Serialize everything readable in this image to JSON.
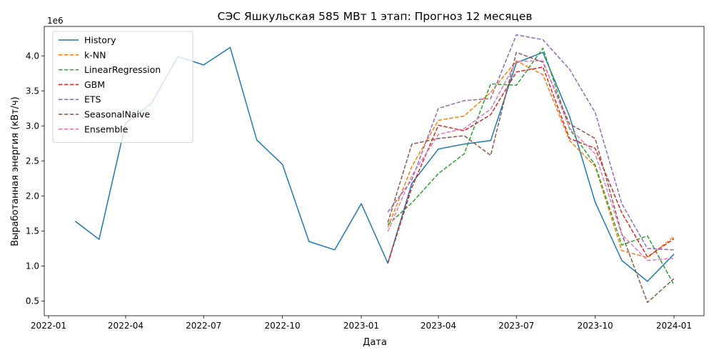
{
  "chart_data": {
    "type": "line",
    "title": "СЭС Яшкульская 585 МВт 1 этап: Прогноз 12 месяцев",
    "xlabel": "Дата",
    "ylabel": "Выработанная энергия (кВт/ч)",
    "y_offset_label": "1e6",
    "y_scale": 1000000,
    "xlim": [
      "2021-12-27",
      "2024-02-05"
    ],
    "ylim": [
      0.29,
      4.42
    ],
    "grid": false,
    "legend_position": "upper-left",
    "x_ticks": [
      {
        "date": "2022-01-01",
        "label": "2022-01"
      },
      {
        "date": "2022-04-01",
        "label": "2022-04"
      },
      {
        "date": "2022-07-01",
        "label": "2022-07"
      },
      {
        "date": "2022-10-01",
        "label": "2022-10"
      },
      {
        "date": "2023-01-01",
        "label": "2023-01"
      },
      {
        "date": "2023-04-01",
        "label": "2023-04"
      },
      {
        "date": "2023-07-01",
        "label": "2023-07"
      },
      {
        "date": "2023-10-01",
        "label": "2023-10"
      },
      {
        "date": "2024-01-01",
        "label": "2024-01"
      }
    ],
    "y_ticks": [
      {
        "value": 0.5,
        "label": "0.5"
      },
      {
        "value": 1.0,
        "label": "1.0"
      },
      {
        "value": 1.5,
        "label": "1.5"
      },
      {
        "value": 2.0,
        "label": "2.0"
      },
      {
        "value": 2.5,
        "label": "2.5"
      },
      {
        "value": 3.0,
        "label": "3.0"
      },
      {
        "value": 3.5,
        "label": "3.5"
      },
      {
        "value": 4.0,
        "label": "4.0"
      }
    ],
    "series": [
      {
        "name": "History",
        "color": "#1f77b4",
        "dash": "solid",
        "x": [
          "2022-02-01",
          "2022-03-01",
          "2022-04-01",
          "2022-05-01",
          "2022-06-01",
          "2022-07-01",
          "2022-08-01",
          "2022-09-01",
          "2022-10-01",
          "2022-11-01",
          "2022-12-01",
          "2023-01-01",
          "2023-02-01",
          "2023-03-01",
          "2023-04-01",
          "2023-05-01",
          "2023-06-01",
          "2023-07-01",
          "2023-08-01",
          "2023-09-01",
          "2023-10-01",
          "2023-11-01",
          "2023-12-01",
          "2024-01-01"
        ],
        "y": [
          1.64,
          1.38,
          3.04,
          3.32,
          3.99,
          3.87,
          4.12,
          2.8,
          2.45,
          1.35,
          1.23,
          1.89,
          1.04,
          2.18,
          2.67,
          2.74,
          2.79,
          3.9,
          4.05,
          3.14,
          1.91,
          1.08,
          0.78,
          1.17
        ]
      },
      {
        "name": "k-NN",
        "color": "#ff7f0e",
        "dash": "dashed",
        "x": [
          "2023-02-01",
          "2023-03-01",
          "2023-04-01",
          "2023-05-01",
          "2023-06-01",
          "2023-07-01",
          "2023-08-01",
          "2023-09-01",
          "2023-10-01",
          "2023-11-01",
          "2023-12-01",
          "2024-01-01"
        ],
        "y": [
          1.55,
          2.42,
          3.08,
          3.14,
          3.48,
          3.93,
          3.73,
          2.79,
          2.42,
          1.22,
          1.12,
          1.42
        ]
      },
      {
        "name": "LinearRegression",
        "color": "#2ca02c",
        "dash": "dashed",
        "x": [
          "2023-02-01",
          "2023-03-01",
          "2023-04-01",
          "2023-05-01",
          "2023-06-01",
          "2023-07-01",
          "2023-08-01",
          "2023-09-01",
          "2023-10-01",
          "2023-11-01",
          "2023-12-01",
          "2024-01-01"
        ],
        "y": [
          1.59,
          1.9,
          2.32,
          2.6,
          3.6,
          3.58,
          4.11,
          2.96,
          2.44,
          1.3,
          1.43,
          0.73
        ]
      },
      {
        "name": "GBM",
        "color": "#d62728",
        "dash": "dashed",
        "x": [
          "2023-02-01",
          "2023-03-01",
          "2023-04-01",
          "2023-05-01",
          "2023-06-01",
          "2023-07-01",
          "2023-08-01",
          "2023-09-01",
          "2023-10-01",
          "2023-11-01",
          "2023-12-01",
          "2024-01-01"
        ],
        "y": [
          1.04,
          2.12,
          3.01,
          2.93,
          3.16,
          3.77,
          3.84,
          2.82,
          2.68,
          1.76,
          1.13,
          1.39
        ]
      },
      {
        "name": "ETS",
        "color": "#9467bd",
        "dash": "dashed",
        "x": [
          "2023-02-01",
          "2023-03-01",
          "2023-04-01",
          "2023-05-01",
          "2023-06-01",
          "2023-07-01",
          "2023-08-01",
          "2023-09-01",
          "2023-10-01",
          "2023-11-01",
          "2023-12-01",
          "2024-01-01"
        ],
        "y": [
          1.77,
          2.23,
          3.25,
          3.36,
          3.39,
          4.3,
          4.23,
          3.81,
          3.19,
          1.89,
          1.25,
          1.23
        ]
      },
      {
        "name": "SeasonalNaive",
        "color": "#8c564b",
        "dash": "dashed",
        "x": [
          "2023-02-01",
          "2023-03-01",
          "2023-04-01",
          "2023-05-01",
          "2023-06-01",
          "2023-07-01",
          "2023-08-01",
          "2023-09-01",
          "2023-10-01",
          "2023-11-01",
          "2023-12-01",
          "2024-01-01"
        ],
        "y": [
          1.62,
          2.74,
          2.82,
          2.86,
          2.58,
          4.05,
          3.91,
          3.03,
          2.82,
          1.46,
          0.48,
          0.82
        ]
      },
      {
        "name": "Ensemble",
        "color": "#e377c2",
        "dash": "dashed",
        "x": [
          "2023-02-01",
          "2023-03-01",
          "2023-04-01",
          "2023-05-01",
          "2023-06-01",
          "2023-07-01",
          "2023-08-01",
          "2023-09-01",
          "2023-10-01",
          "2023-11-01",
          "2023-12-01",
          "2024-01-01"
        ],
        "y": [
          1.49,
          2.29,
          2.88,
          2.96,
          3.24,
          3.92,
          3.93,
          2.97,
          2.6,
          1.45,
          1.08,
          1.11
        ]
      }
    ]
  }
}
